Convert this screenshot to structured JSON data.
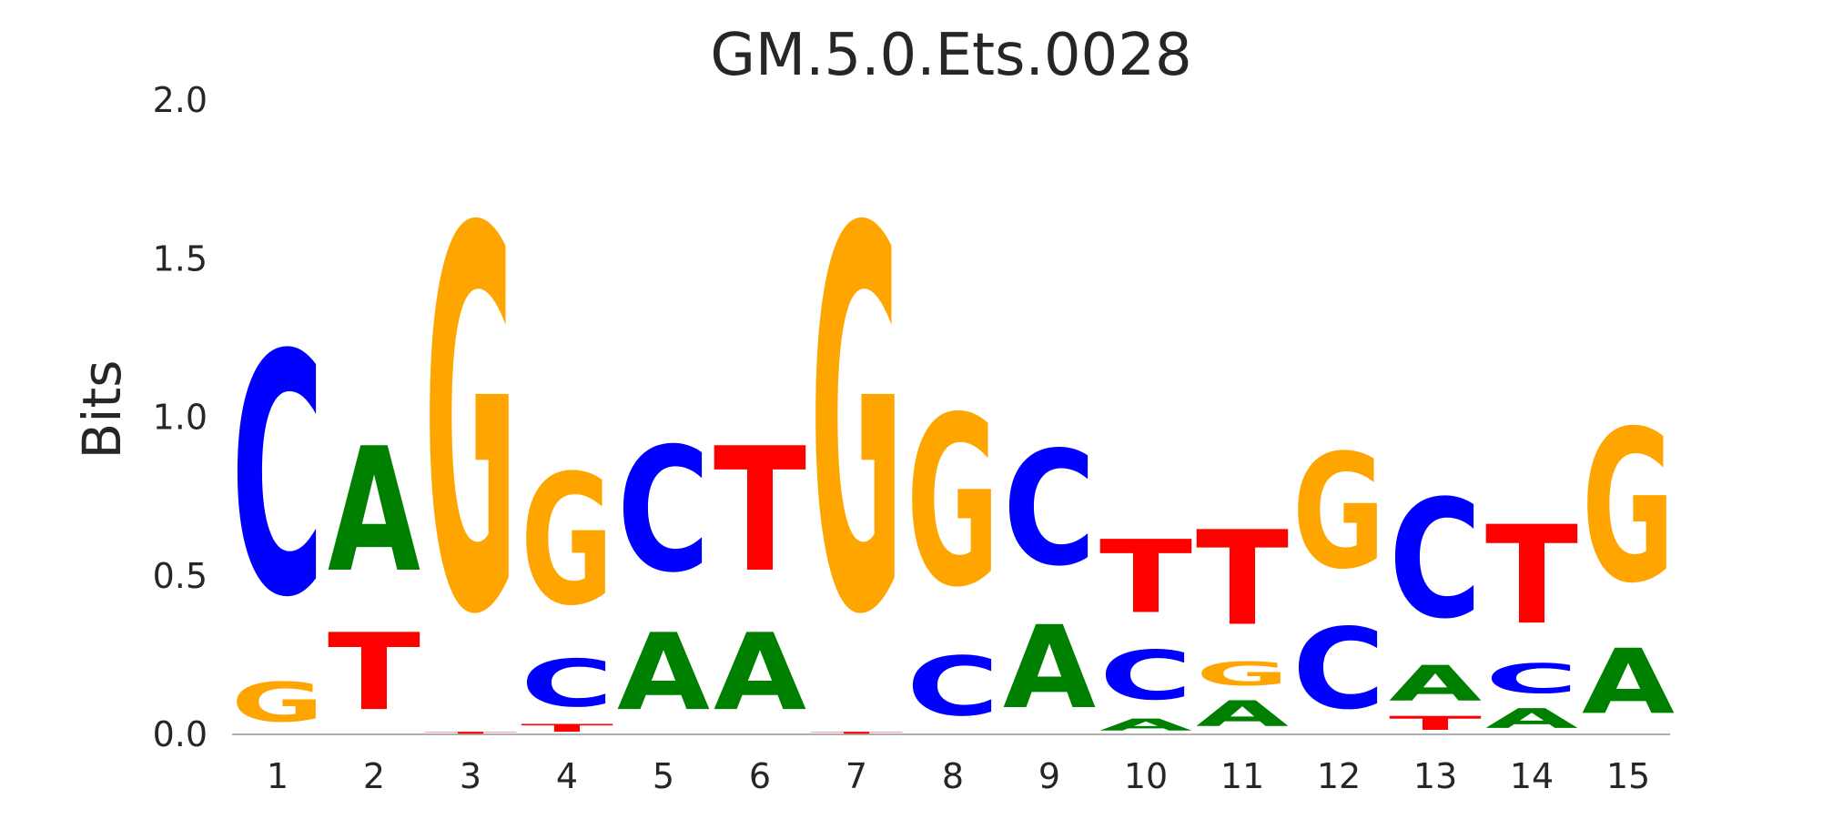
{
  "chart_data": {
    "type": "sequence-logo",
    "title": "GM.5.0.Ets.0028",
    "xlabel": "",
    "ylabel": "Bits",
    "ylim": [
      0,
      2.0
    ],
    "yticks": [
      "0.0",
      "0.5",
      "1.0",
      "1.5",
      "2.0"
    ],
    "grid": false,
    "colors": {
      "A": "#008000",
      "C": "#0000ff",
      "G": "#ffa500",
      "T": "#ff0000"
    },
    "positions": [
      {
        "label": "1",
        "letters": [
          {
            "base": "G",
            "bits": 0.2
          },
          {
            "base": "C",
            "bits": 1.22
          }
        ]
      },
      {
        "label": "2",
        "letters": [
          {
            "base": "T",
            "bits": 0.39
          },
          {
            "base": "A",
            "bits": 0.63
          }
        ]
      },
      {
        "label": "3",
        "letters": [
          {
            "base": "T",
            "bits": 0.01
          },
          {
            "base": "G",
            "bits": 1.93
          }
        ]
      },
      {
        "label": "4",
        "letters": [
          {
            "base": "T",
            "bits": 0.04
          },
          {
            "base": "C",
            "bits": 0.24
          },
          {
            "base": "G",
            "bits": 0.66
          }
        ]
      },
      {
        "label": "5",
        "letters": [
          {
            "base": "A",
            "bits": 0.39
          },
          {
            "base": "C",
            "bits": 0.63
          }
        ]
      },
      {
        "label": "6",
        "letters": [
          {
            "base": "A",
            "bits": 0.39
          },
          {
            "base": "T",
            "bits": 0.63
          }
        ]
      },
      {
        "label": "7",
        "letters": [
          {
            "base": "T",
            "bits": 0.01
          },
          {
            "base": "G",
            "bits": 1.93
          }
        ]
      },
      {
        "label": "8",
        "letters": [
          {
            "base": "C",
            "bits": 0.3
          },
          {
            "base": "G",
            "bits": 0.86
          }
        ]
      },
      {
        "label": "9",
        "letters": [
          {
            "base": "A",
            "bits": 0.42
          },
          {
            "base": "C",
            "bits": 0.58
          }
        ]
      },
      {
        "label": "10",
        "letters": [
          {
            "base": "A",
            "bits": 0.06
          },
          {
            "base": "C",
            "bits": 0.25
          },
          {
            "base": "T",
            "bits": 0.37
          }
        ]
      },
      {
        "label": "11",
        "letters": [
          {
            "base": "A",
            "bits": 0.13
          },
          {
            "base": "G",
            "bits": 0.12
          },
          {
            "base": "T",
            "bits": 0.48
          }
        ]
      },
      {
        "label": "12",
        "letters": [
          {
            "base": "C",
            "bits": 0.41
          },
          {
            "base": "G",
            "bits": 0.58
          }
        ]
      },
      {
        "label": "13",
        "letters": [
          {
            "base": "T",
            "bits": 0.07
          },
          {
            "base": "A",
            "bits": 0.18
          },
          {
            "base": "C",
            "bits": 0.6
          }
        ]
      },
      {
        "label": "14",
        "letters": [
          {
            "base": "A",
            "bits": 0.1
          },
          {
            "base": "C",
            "bits": 0.15
          },
          {
            "base": "T",
            "bits": 0.5
          }
        ]
      },
      {
        "label": "15",
        "letters": [
          {
            "base": "A",
            "bits": 0.33
          },
          {
            "base": "G",
            "bits": 0.77
          }
        ]
      }
    ]
  }
}
